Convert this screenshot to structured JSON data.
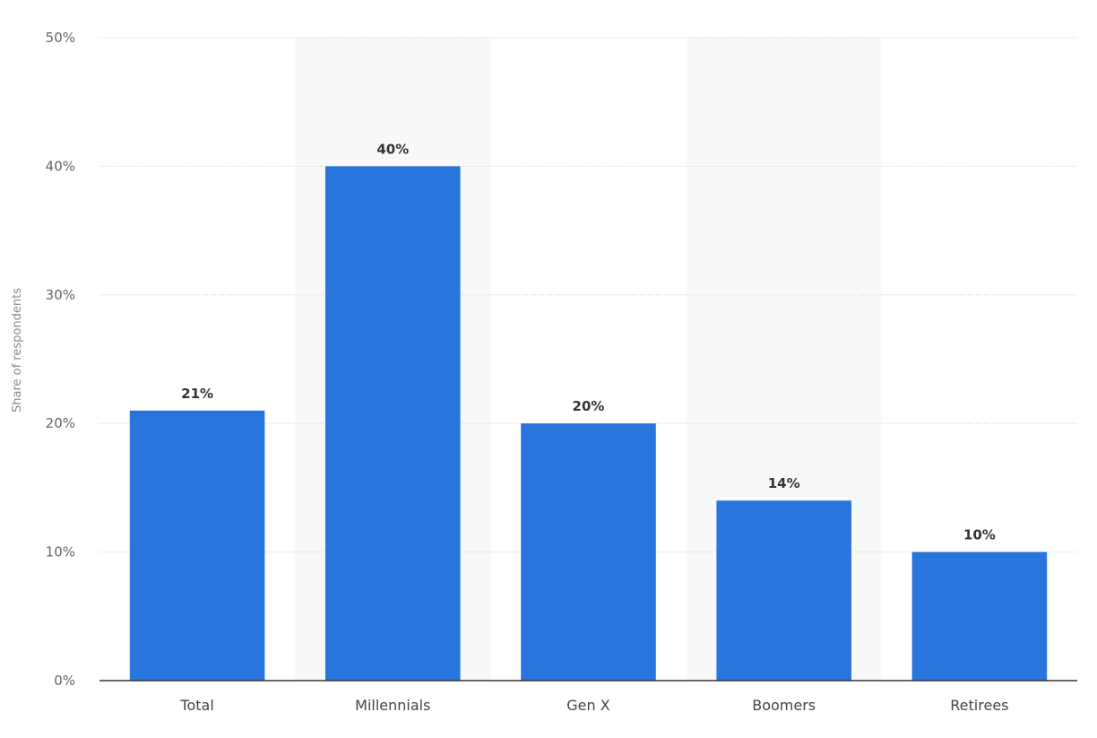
{
  "chart_data": {
    "type": "bar",
    "categories": [
      "Total",
      "Millennials",
      "Gen X",
      "Boomers",
      "Retirees"
    ],
    "values": [
      21,
      40,
      20,
      14,
      10
    ],
    "data_labels": [
      "21%",
      "40%",
      "20%",
      "14%",
      "10%"
    ],
    "title": "",
    "xlabel": "",
    "ylabel": "Share of respondents",
    "ylim": [
      0,
      50
    ],
    "yticks": [
      0,
      10,
      20,
      30,
      40,
      50
    ],
    "ytick_labels": [
      "0%",
      "10%",
      "20%",
      "30%",
      "40%",
      "50%"
    ],
    "grid": true,
    "legend": "none",
    "bar_color": "#2876DD",
    "band_color": "#F8F8F8",
    "grid_color": "#CCCCCC",
    "axis_color": "#333333"
  }
}
